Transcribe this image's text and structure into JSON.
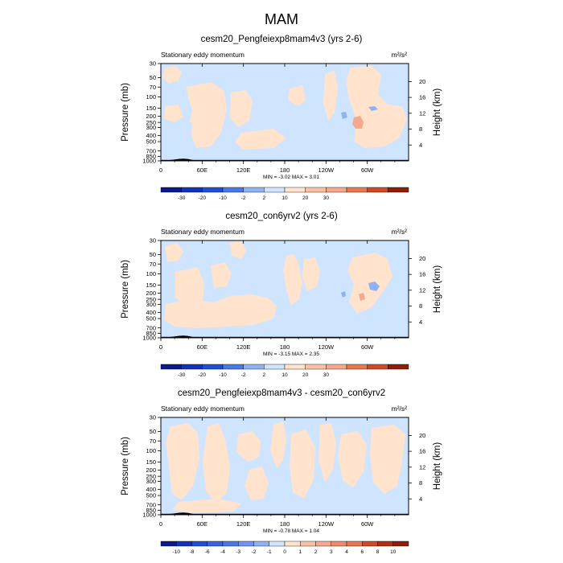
{
  "figure": {
    "title": "MAM"
  },
  "chart_data": [
    {
      "type": "heatmap",
      "title": "cesm20_Pengfeiexp8mam4v3 (yrs 2-6)",
      "subtitle": "Stationary eddy momentum",
      "units": "m²/s²",
      "xlabel": "",
      "ylabel": "Pressure (mb)",
      "ylabel_right": "Height (km)",
      "x_ticks": [
        "0",
        "60E",
        "120E",
        "180",
        "120W",
        "60W"
      ],
      "y_ticks": [
        "30",
        "50",
        "70",
        "100",
        "150",
        "200",
        "250",
        "300",
        "400",
        "500",
        "700",
        "850",
        "1000"
      ],
      "y_ticks_right": [
        "20",
        "16",
        "12",
        "8",
        "4"
      ],
      "stats": "MIN =  -3.02  MAX =   3.01",
      "min": -3.02,
      "max": 3.01,
      "colorbar": {
        "labels": [
          "-30",
          "-20",
          "-10",
          "-2",
          "2",
          "10",
          "20",
          "30"
        ]
      }
    },
    {
      "type": "heatmap",
      "title": "cesm20_con6yrv2 (yrs 2-6)",
      "subtitle": "Stationary eddy momentum",
      "units": "m²/s²",
      "xlabel": "",
      "ylabel": "Pressure (mb)",
      "ylabel_right": "Height (km)",
      "x_ticks": [
        "0",
        "60E",
        "120E",
        "180",
        "120W",
        "60W"
      ],
      "y_ticks": [
        "30",
        "50",
        "70",
        "100",
        "150",
        "200",
        "250",
        "300",
        "400",
        "500",
        "700",
        "850",
        "1000"
      ],
      "y_ticks_right": [
        "20",
        "16",
        "12",
        "8",
        "4"
      ],
      "stats": "MIN =  -3.15  MAX =   2.35",
      "min": -3.15,
      "max": 2.35,
      "colorbar": {
        "labels": [
          "-30",
          "-20",
          "-10",
          "-2",
          "2",
          "10",
          "20",
          "30"
        ]
      }
    },
    {
      "type": "heatmap",
      "title": "cesm20_Pengfeiexp8mam4v3 - cesm20_con6yrv2",
      "subtitle": "Stationary eddy momentum",
      "units": "m²/s²",
      "xlabel": "",
      "ylabel": "Pressure (mb)",
      "ylabel_right": "Height (km)",
      "x_ticks": [
        "0",
        "60E",
        "120E",
        "180",
        "120W",
        "60W"
      ],
      "y_ticks": [
        "30",
        "50",
        "70",
        "100",
        "150",
        "200",
        "250",
        "300",
        "400",
        "500",
        "700",
        "850",
        "1000"
      ],
      "y_ticks_right": [
        "20",
        "16",
        "12",
        "8",
        "4"
      ],
      "stats": "MIN =  -0.78  MAX =   1.04",
      "min": -0.78,
      "max": 1.04,
      "colorbar": {
        "labels": [
          "-10",
          "-8",
          "-6",
          "-4",
          "-3",
          "-2",
          "-1",
          "0",
          "1",
          "2",
          "3",
          "4",
          "6",
          "8",
          "10"
        ]
      }
    }
  ],
  "colors": {
    "neg_light": "#cfe4ff",
    "pos_light": "#ffe3cc",
    "pos_mid": "#f5a88c",
    "neg_mid": "#90b2f2",
    "topography": "#000000",
    "colorbar_12": [
      "#0a1a8c",
      "#1233b8",
      "#1f4fd9",
      "#4a78e8",
      "#90b2f2",
      "#cfe4ff",
      "#ffe3cc",
      "#f8c0a4",
      "#f5a88c",
      "#e8764f",
      "#d24a25",
      "#8f1d0a"
    ],
    "colorbar_16": [
      "#0a1a8c",
      "#1233b8",
      "#1f4fd9",
      "#3864e0",
      "#4a78e8",
      "#6f95ee",
      "#90b2f2",
      "#cfe4ff",
      "#ffe3cc",
      "#f8c0a4",
      "#f5a88c",
      "#ee8c6a",
      "#e8764f",
      "#d24a25",
      "#b0300f",
      "#8f1d0a"
    ]
  }
}
